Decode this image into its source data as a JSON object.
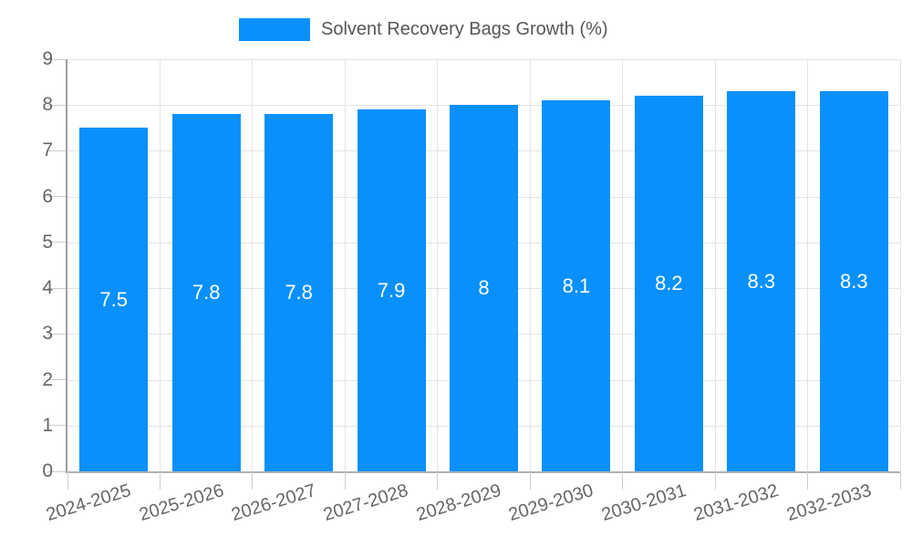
{
  "legend": {
    "swatch_color": "#0990fa"
  },
  "chart_data": {
    "type": "bar",
    "title": "",
    "xlabel": "",
    "ylabel": "",
    "series_name": "Solvent Recovery Bags Growth (%)",
    "categories": [
      "2024-2025",
      "2025-2026",
      "2026-2027",
      "2027-2028",
      "2028-2029",
      "2029-2030",
      "2030-2031",
      "2031-2032",
      "2032-2033"
    ],
    "values": [
      7.5,
      7.8,
      7.8,
      7.9,
      8,
      8.1,
      8.2,
      8.3,
      8.3
    ],
    "value_labels": [
      "7.5",
      "7.8",
      "7.8",
      "7.9",
      "8",
      "8.1",
      "8.2",
      "8.3",
      "8.3"
    ],
    "ylim": [
      0,
      9
    ],
    "yticks": [
      "0",
      "1",
      "2",
      "3",
      "4",
      "5",
      "6",
      "7",
      "8",
      "9"
    ],
    "grid": true,
    "legend_position": "top-center",
    "bar_color": "#0990fa",
    "value_label_color": "#ffffff",
    "grid_color": "#e4e4e4",
    "tick_color": "#cccccc",
    "axis_text_color": "#666666",
    "legend_text_color": "#565656"
  }
}
